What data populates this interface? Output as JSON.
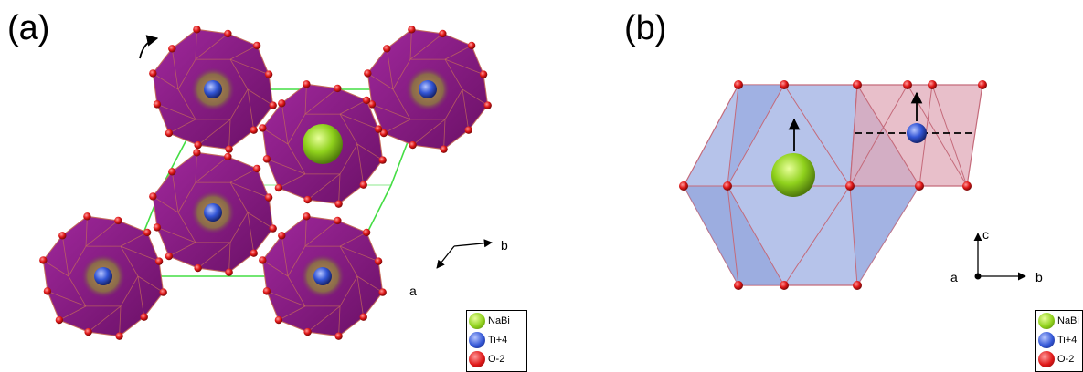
{
  "panels": {
    "a": {
      "label": "(a)"
    },
    "b": {
      "label": "(b)"
    }
  },
  "axes_a": {
    "x": "b",
    "y": "a"
  },
  "axes_b": {
    "up": "c",
    "left": "a",
    "right": "b"
  },
  "legend": [
    {
      "label": "NaBi",
      "color": "#8fd11c"
    },
    {
      "label": "Ti+4",
      "color": "#2f4fd8"
    },
    {
      "label": "O-2",
      "color": "#e01818"
    }
  ],
  "colors": {
    "octahedron": "#8a1a86",
    "octahedron_edge": "#c46a5a",
    "cell_line": "#44dd44",
    "face_blue": "#a9b8e6",
    "face_pink": "#e0aab8",
    "oxygen": "#e01818"
  },
  "icons": [
    "rotate-arrow-icon",
    "polarization-arrow-icon"
  ]
}
